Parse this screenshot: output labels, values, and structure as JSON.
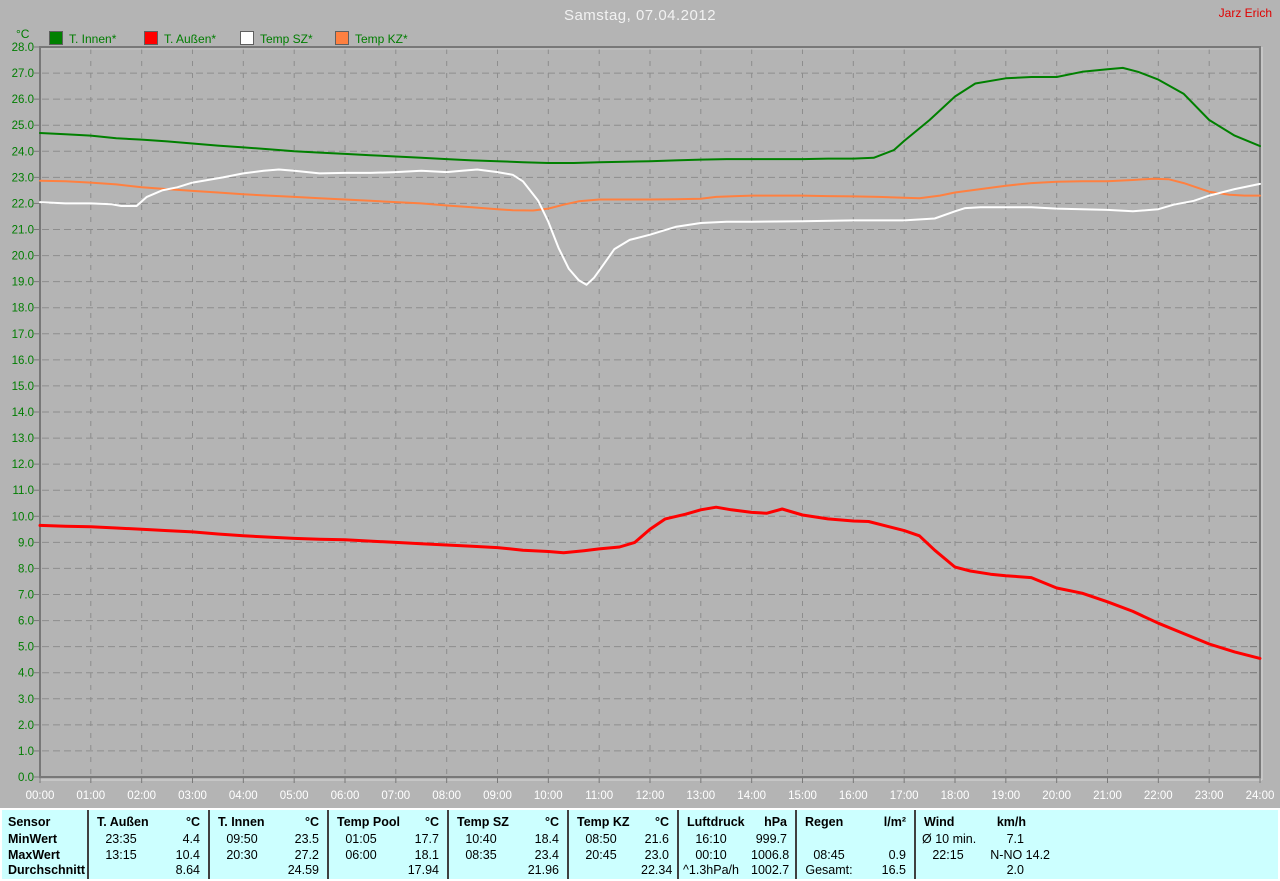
{
  "window": {
    "title": "Samstag, 07.04.2012",
    "user_label": "Jarz Erich"
  },
  "legend": {
    "unit_label": "°C",
    "items": [
      {
        "label": "T. Innen*",
        "color": "#008000"
      },
      {
        "label": "T. Außen*",
        "color": "#ff0000"
      },
      {
        "label": "Temp SZ*",
        "color": "#ffffff"
      },
      {
        "label": "Temp KZ*",
        "color": "#ff8040"
      }
    ]
  },
  "chart_data": {
    "type": "line",
    "title": "Samstag, 07.04.2012",
    "grid": true,
    "legend_position": "top-left",
    "x_axis": {
      "range_hours": [
        0,
        24
      ],
      "ticks": [
        "00:00",
        "01:00",
        "02:00",
        "03:00",
        "04:00",
        "05:00",
        "06:00",
        "07:00",
        "08:00",
        "09:00",
        "10:00",
        "11:00",
        "12:00",
        "13:00",
        "14:00",
        "15:00",
        "16:00",
        "17:00",
        "18:00",
        "19:00",
        "20:00",
        "21:00",
        "22:00",
        "23:00",
        "24:00"
      ]
    },
    "y_axis": {
      "unit": "°C",
      "range": [
        0,
        28
      ],
      "tick_step": 1.0
    },
    "series": [
      {
        "name": "T. Innen*",
        "color": "#008000",
        "points": [
          [
            0,
            24.7
          ],
          [
            0.5,
            24.65
          ],
          [
            1,
            24.6
          ],
          [
            1.5,
            24.5
          ],
          [
            2,
            24.45
          ],
          [
            2.5,
            24.38
          ],
          [
            3,
            24.3
          ],
          [
            3.5,
            24.22
          ],
          [
            4,
            24.15
          ],
          [
            4.5,
            24.08
          ],
          [
            5,
            24.0
          ],
          [
            5.5,
            23.95
          ],
          [
            6,
            23.9
          ],
          [
            6.5,
            23.85
          ],
          [
            7,
            23.8
          ],
          [
            7.5,
            23.75
          ],
          [
            8,
            23.7
          ],
          [
            8.5,
            23.65
          ],
          [
            9,
            23.62
          ],
          [
            9.5,
            23.58
          ],
          [
            10,
            23.55
          ],
          [
            10.5,
            23.55
          ],
          [
            11,
            23.58
          ],
          [
            11.5,
            23.6
          ],
          [
            12,
            23.62
          ],
          [
            12.5,
            23.65
          ],
          [
            13,
            23.68
          ],
          [
            13.5,
            23.7
          ],
          [
            14,
            23.7
          ],
          [
            14.5,
            23.7
          ],
          [
            15,
            23.7
          ],
          [
            15.5,
            23.72
          ],
          [
            16,
            23.72
          ],
          [
            16.4,
            23.75
          ],
          [
            16.8,
            24.05
          ],
          [
            17,
            24.4
          ],
          [
            17.5,
            25.2
          ],
          [
            18,
            26.1
          ],
          [
            18.4,
            26.6
          ],
          [
            19,
            26.8
          ],
          [
            19.5,
            26.85
          ],
          [
            20,
            26.85
          ],
          [
            20.5,
            27.05
          ],
          [
            21,
            27.15
          ],
          [
            21.3,
            27.2
          ],
          [
            21.6,
            27.05
          ],
          [
            22,
            26.75
          ],
          [
            22.5,
            26.2
          ],
          [
            23,
            25.2
          ],
          [
            23.5,
            24.6
          ],
          [
            24,
            24.2
          ]
        ]
      },
      {
        "name": "T. Außen*",
        "color": "#ff0000",
        "points": [
          [
            0,
            9.65
          ],
          [
            0.5,
            9.62
          ],
          [
            1,
            9.6
          ],
          [
            1.5,
            9.55
          ],
          [
            2,
            9.5
          ],
          [
            2.5,
            9.45
          ],
          [
            3,
            9.4
          ],
          [
            3.5,
            9.32
          ],
          [
            4,
            9.25
          ],
          [
            4.5,
            9.2
          ],
          [
            5,
            9.15
          ],
          [
            5.5,
            9.12
          ],
          [
            6,
            9.1
          ],
          [
            6.5,
            9.05
          ],
          [
            7,
            9.0
          ],
          [
            7.5,
            8.95
          ],
          [
            8,
            8.9
          ],
          [
            8.5,
            8.85
          ],
          [
            9,
            8.8
          ],
          [
            9.5,
            8.7
          ],
          [
            10,
            8.65
          ],
          [
            10.3,
            8.6
          ],
          [
            10.7,
            8.68
          ],
          [
            11,
            8.75
          ],
          [
            11.4,
            8.82
          ],
          [
            11.7,
            9.0
          ],
          [
            12,
            9.5
          ],
          [
            12.3,
            9.9
          ],
          [
            12.7,
            10.08
          ],
          [
            13,
            10.25
          ],
          [
            13.3,
            10.35
          ],
          [
            13.6,
            10.25
          ],
          [
            14,
            10.15
          ],
          [
            14.3,
            10.12
          ],
          [
            14.6,
            10.28
          ],
          [
            15,
            10.05
          ],
          [
            15.5,
            9.9
          ],
          [
            16,
            9.82
          ],
          [
            16.3,
            9.8
          ],
          [
            16.7,
            9.6
          ],
          [
            17,
            9.45
          ],
          [
            17.3,
            9.25
          ],
          [
            17.6,
            8.7
          ],
          [
            18,
            8.05
          ],
          [
            18.3,
            7.9
          ],
          [
            18.7,
            7.78
          ],
          [
            19,
            7.72
          ],
          [
            19.5,
            7.65
          ],
          [
            20,
            7.25
          ],
          [
            20.5,
            7.05
          ],
          [
            21,
            6.72
          ],
          [
            21.5,
            6.35
          ],
          [
            22,
            5.9
          ],
          [
            22.5,
            5.5
          ],
          [
            23,
            5.1
          ],
          [
            23.5,
            4.8
          ],
          [
            24,
            4.55
          ]
        ]
      },
      {
        "name": "Temp SZ*",
        "color": "#ffffff",
        "points": [
          [
            0,
            22.05
          ],
          [
            0.5,
            22.0
          ],
          [
            1,
            22.0
          ],
          [
            1.4,
            21.97
          ],
          [
            1.6,
            21.9
          ],
          [
            1.9,
            21.9
          ],
          [
            2.1,
            22.25
          ],
          [
            2.4,
            22.5
          ],
          [
            2.7,
            22.62
          ],
          [
            3,
            22.8
          ],
          [
            3.3,
            22.9
          ],
          [
            3.6,
            23.0
          ],
          [
            4,
            23.15
          ],
          [
            4.4,
            23.25
          ],
          [
            4.7,
            23.3
          ],
          [
            5,
            23.25
          ],
          [
            5.5,
            23.15
          ],
          [
            6,
            23.17
          ],
          [
            6.5,
            23.17
          ],
          [
            7,
            23.2
          ],
          [
            7.5,
            23.25
          ],
          [
            8,
            23.2
          ],
          [
            8.3,
            23.25
          ],
          [
            8.6,
            23.3
          ],
          [
            9,
            23.2
          ],
          [
            9.3,
            23.1
          ],
          [
            9.5,
            22.85
          ],
          [
            9.8,
            22.1
          ],
          [
            10,
            21.3
          ],
          [
            10.2,
            20.3
          ],
          [
            10.4,
            19.5
          ],
          [
            10.6,
            19.05
          ],
          [
            10.75,
            18.88
          ],
          [
            10.9,
            19.15
          ],
          [
            11.1,
            19.7
          ],
          [
            11.3,
            20.25
          ],
          [
            11.6,
            20.6
          ],
          [
            12,
            20.8
          ],
          [
            12.5,
            21.1
          ],
          [
            13,
            21.25
          ],
          [
            13.5,
            21.3
          ],
          [
            14,
            21.3
          ],
          [
            15,
            21.32
          ],
          [
            16,
            21.35
          ],
          [
            17,
            21.35
          ],
          [
            17.6,
            21.42
          ],
          [
            18,
            21.7
          ],
          [
            18.2,
            21.82
          ],
          [
            18.5,
            21.85
          ],
          [
            19,
            21.85
          ],
          [
            19.5,
            21.85
          ],
          [
            20,
            21.8
          ],
          [
            20.5,
            21.78
          ],
          [
            21,
            21.75
          ],
          [
            21.5,
            21.7
          ],
          [
            22,
            21.78
          ],
          [
            22.3,
            21.95
          ],
          [
            22.7,
            22.1
          ],
          [
            23,
            22.3
          ],
          [
            23.5,
            22.55
          ],
          [
            24,
            22.75
          ]
        ]
      },
      {
        "name": "Temp KZ*",
        "color": "#ff8040",
        "points": [
          [
            0,
            22.87
          ],
          [
            0.5,
            22.85
          ],
          [
            1,
            22.8
          ],
          [
            1.5,
            22.73
          ],
          [
            2,
            22.62
          ],
          [
            2.5,
            22.55
          ],
          [
            3,
            22.48
          ],
          [
            3.5,
            22.42
          ],
          [
            4,
            22.35
          ],
          [
            4.5,
            22.3
          ],
          [
            5,
            22.25
          ],
          [
            5.5,
            22.2
          ],
          [
            6,
            22.15
          ],
          [
            6.5,
            22.1
          ],
          [
            7,
            22.05
          ],
          [
            7.5,
            22.0
          ],
          [
            8,
            21.92
          ],
          [
            8.5,
            21.85
          ],
          [
            9,
            21.78
          ],
          [
            9.3,
            21.74
          ],
          [
            9.7,
            21.73
          ],
          [
            10,
            21.8
          ],
          [
            10.3,
            21.95
          ],
          [
            10.6,
            22.08
          ],
          [
            11,
            22.15
          ],
          [
            11.5,
            22.15
          ],
          [
            12,
            22.15
          ],
          [
            12.5,
            22.16
          ],
          [
            13,
            22.18
          ],
          [
            13.3,
            22.25
          ],
          [
            13.7,
            22.28
          ],
          [
            14,
            22.3
          ],
          [
            14.5,
            22.3
          ],
          [
            15,
            22.3
          ],
          [
            15.5,
            22.28
          ],
          [
            16,
            22.27
          ],
          [
            16.5,
            22.25
          ],
          [
            17,
            22.22
          ],
          [
            17.3,
            22.2
          ],
          [
            17.7,
            22.3
          ],
          [
            18,
            22.42
          ],
          [
            18.5,
            22.55
          ],
          [
            19,
            22.68
          ],
          [
            19.5,
            22.78
          ],
          [
            20,
            22.83
          ],
          [
            20.5,
            22.85
          ],
          [
            21,
            22.85
          ],
          [
            21.5,
            22.9
          ],
          [
            21.9,
            22.95
          ],
          [
            22.2,
            22.93
          ],
          [
            22.5,
            22.78
          ],
          [
            23,
            22.45
          ],
          [
            23.4,
            22.33
          ],
          [
            23.7,
            22.3
          ],
          [
            24,
            22.3
          ]
        ]
      }
    ]
  },
  "table": {
    "row_labels": [
      "Sensor",
      "MinWert",
      "MaxWert",
      "Durchschnitt"
    ],
    "groups": [
      {
        "name": "T. Außen",
        "unit": "°C",
        "cells": [
          [
            "23:35",
            "4.4"
          ],
          [
            "13:15",
            "10.4"
          ],
          [
            "",
            "8.64"
          ]
        ]
      },
      {
        "name": "T. Innen",
        "unit": "°C",
        "cells": [
          [
            "09:50",
            "23.5"
          ],
          [
            "20:30",
            "27.2"
          ],
          [
            "",
            "24.59"
          ]
        ]
      },
      {
        "name": "Temp Pool",
        "unit": "°C",
        "cells": [
          [
            "01:05",
            "17.7"
          ],
          [
            "06:00",
            "18.1"
          ],
          [
            "",
            "17.94"
          ]
        ]
      },
      {
        "name": "Temp SZ",
        "unit": "°C",
        "cells": [
          [
            "10:40",
            "18.4"
          ],
          [
            "08:35",
            "23.4"
          ],
          [
            "",
            "21.96"
          ]
        ]
      },
      {
        "name": "Temp KZ",
        "unit": "°C",
        "cells": [
          [
            "08:50",
            "21.6"
          ],
          [
            "20:45",
            "23.0"
          ],
          [
            "",
            "22.34"
          ]
        ]
      },
      {
        "name": "Luftdruck",
        "unit": "hPa",
        "cells": [
          [
            "16:10",
            "999.7"
          ],
          [
            "00:10",
            "1006.8"
          ],
          [
            "^1.3hPa/h",
            "1002.7"
          ]
        ]
      },
      {
        "name": "Regen",
        "unit": "l/m²",
        "cells": [
          [
            "",
            ""
          ],
          [
            "08:45",
            "0.9"
          ],
          [
            "Gesamt:",
            "16.5"
          ]
        ]
      },
      {
        "name": "Wind",
        "unit": "km/h",
        "cells": [
          [
            "Ø 10 min.",
            "7.1"
          ],
          [
            "22:15",
            "N-NO 14.2"
          ],
          [
            "",
            "2.0"
          ]
        ]
      }
    ]
  },
  "colors": {
    "background": "#b4b4b4",
    "grid": "#8d8d8d",
    "frame": "#787878",
    "axis_text_y": "#007d00",
    "axis_text_x": "#ffffff",
    "title_text": "#f2f2f2",
    "user_text": "#e00000",
    "table_background": "#ccffff"
  }
}
